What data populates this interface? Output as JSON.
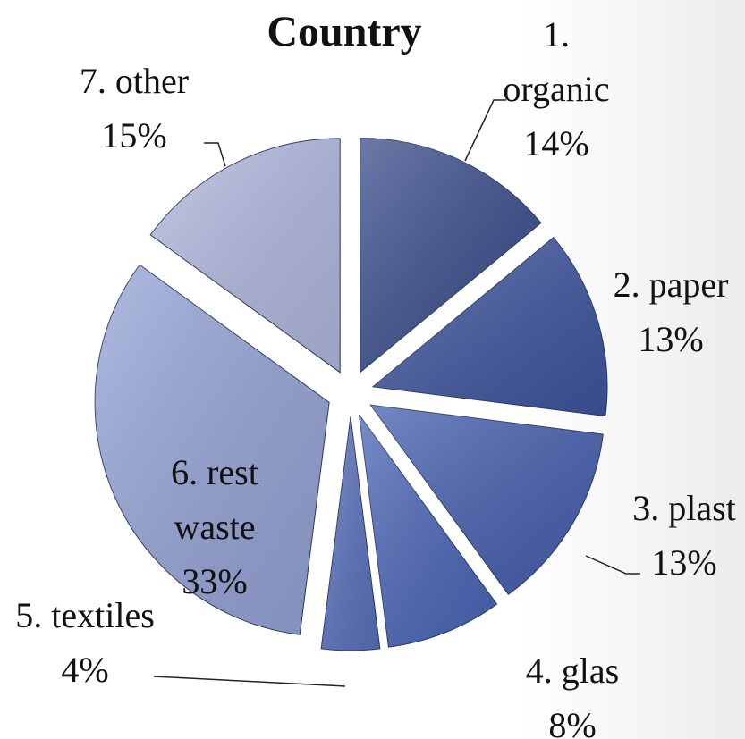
{
  "chart_data": {
    "type": "pie",
    "title": "Country",
    "categories": [
      "1. organic",
      "2. paper",
      "3. plast",
      "4. glas",
      "5. textiles",
      "6. rest waste",
      "7. other"
    ],
    "values": [
      14,
      13,
      13,
      8,
      4,
      33,
      15
    ],
    "value_labels": [
      "14%",
      "13%",
      "13%",
      "8%",
      "4%",
      "33%",
      "15%"
    ],
    "colors": [
      "#3a4e8c",
      "#3f56a0",
      "#4660b0",
      "#4b67b8",
      "#5a72bd",
      "#97a5d8",
      "#b2bae0"
    ]
  }
}
